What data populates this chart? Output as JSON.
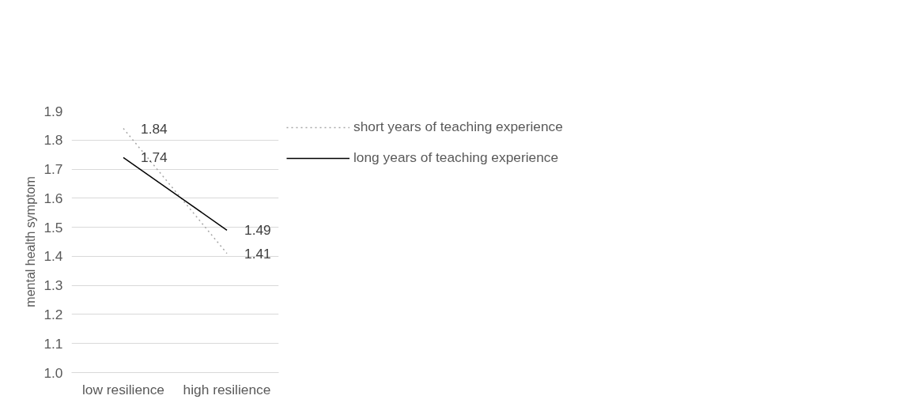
{
  "chart_data": {
    "type": "line",
    "ylabel": "mental health symptom",
    "categories": [
      "low resilience",
      "high resilience"
    ],
    "series": [
      {
        "name": "short years of teaching experience",
        "color": "#a6a6a6",
        "line_style": "dotted",
        "values": [
          1.84,
          1.41
        ]
      },
      {
        "name": "long years of teaching experience",
        "color": "#000000",
        "line_style": "solid",
        "values": [
          1.74,
          1.49
        ]
      }
    ],
    "ylim": [
      1.0,
      1.9
    ],
    "yticks": [
      {
        "value": 1.0,
        "label": "1.0"
      },
      1.1,
      1.2,
      1.3,
      1.4,
      1.5,
      1.6,
      1.7,
      1.8,
      1.9
    ],
    "grid": "y",
    "legend": "top right",
    "data_labels": true
  }
}
